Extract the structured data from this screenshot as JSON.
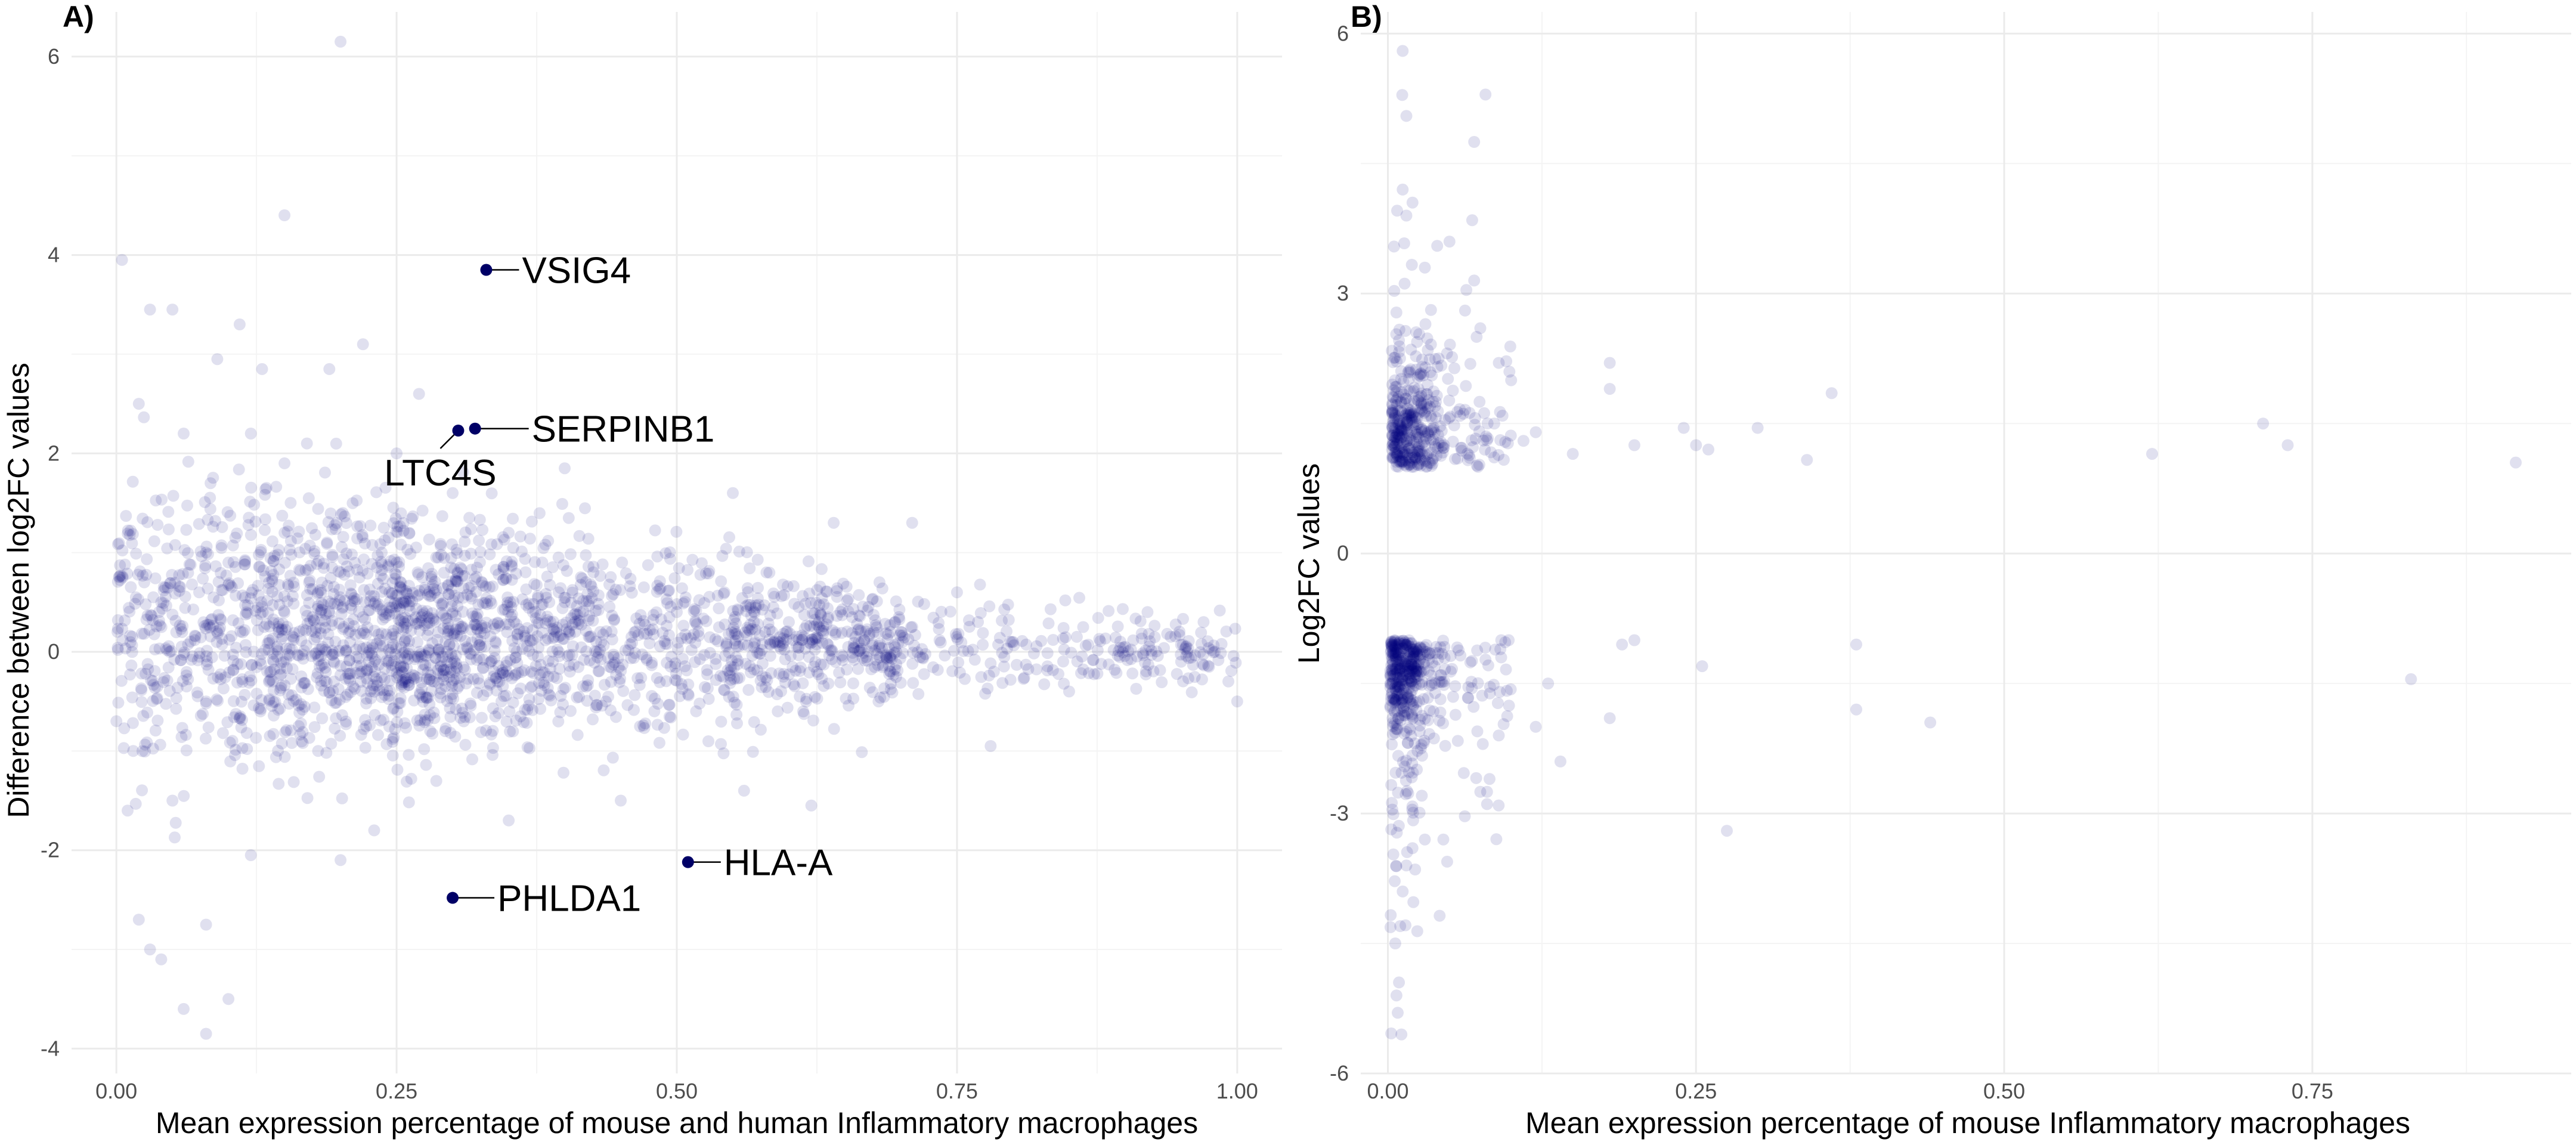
{
  "chart_data": [
    {
      "panel": "A)",
      "type": "scatter",
      "xlabel": "Mean expression percentage of mouse and human Inflammatory macrophages",
      "ylabel": "Difference between log2FC values",
      "xlim": [
        -0.04,
        1.04
      ],
      "ylim": [
        -4.25,
        6.45
      ],
      "x_ticks": [
        0,
        0.25,
        0.5,
        0.75,
        1.0
      ],
      "x_tick_labels": [
        "0.00",
        "0.25",
        "0.50",
        "0.75",
        "1.00"
      ],
      "y_ticks": [
        -4,
        -2,
        0,
        2,
        4,
        6
      ],
      "y_tick_labels": [
        "-4",
        "-2",
        "0",
        "2",
        "4",
        "6"
      ],
      "grid": true,
      "point_color": "#00007f",
      "point_opacity": 0.12,
      "highlight_color": "#000066",
      "approx_point_count": 2600,
      "points": [
        [
          0.005,
          3.95
        ],
        [
          0.2,
          6.15
        ],
        [
          0.15,
          4.4
        ],
        [
          0.03,
          3.45
        ],
        [
          0.05,
          3.45
        ],
        [
          0.11,
          3.3
        ],
        [
          0.13,
          2.85
        ],
        [
          0.17,
          2.1
        ],
        [
          0.27,
          2.6
        ],
        [
          0.19,
          2.85
        ],
        [
          0.09,
          2.95
        ],
        [
          0.02,
          2.5
        ],
        [
          0.06,
          2.2
        ],
        [
          0.22,
          3.1
        ],
        [
          0.15,
          1.9
        ],
        [
          0.25,
          2.0
        ],
        [
          0.4,
          1.85
        ],
        [
          0.55,
          1.6
        ],
        [
          0.64,
          1.3
        ],
        [
          0.71,
          1.3
        ],
        [
          0.02,
          -2.7
        ],
        [
          0.03,
          -3.0
        ],
        [
          0.04,
          -3.1
        ],
        [
          0.06,
          -3.6
        ],
        [
          0.08,
          -3.85
        ],
        [
          0.1,
          -3.5
        ],
        [
          0.08,
          -2.75
        ],
        [
          0.12,
          -2.05
        ],
        [
          0.2,
          -2.1
        ],
        [
          0.23,
          -1.8
        ],
        [
          0.35,
          -1.7
        ],
        [
          0.45,
          -1.5
        ],
        [
          0.56,
          -1.4
        ],
        [
          0.62,
          -1.55
        ],
        [
          0.78,
          -0.95
        ],
        [
          0.01,
          -1.6
        ],
        [
          0.0,
          -0.7
        ],
        [
          0.015,
          -1.0
        ],
        [
          0.05,
          -1.5
        ],
        [
          0.12,
          2.2
        ],
        [
          0.3,
          1.6
        ],
        [
          0.35,
          1.2
        ],
        [
          0.08,
          1.0
        ],
        [
          0.1,
          0.9
        ],
        [
          0.15,
          1.2
        ],
        [
          0.18,
          0.6
        ],
        [
          0.2,
          0.8
        ],
        [
          0.25,
          0.9
        ],
        [
          0.3,
          0.4
        ],
        [
          0.4,
          0.5
        ],
        [
          0.5,
          0.4
        ],
        [
          0.6,
          0.3
        ],
        [
          0.7,
          0.2
        ],
        [
          0.8,
          0.1
        ],
        [
          0.9,
          0.05
        ],
        [
          0.95,
          -0.1
        ],
        [
          0.98,
          0.0
        ],
        [
          1.0,
          -0.5
        ],
        [
          0.97,
          0.3
        ],
        [
          0.92,
          0.4
        ],
        [
          0.85,
          -0.4
        ],
        [
          0.75,
          0.6
        ],
        [
          0.68,
          -0.5
        ],
        [
          0.58,
          0.8
        ],
        [
          0.48,
          -0.6
        ],
        [
          0.38,
          0.9
        ],
        [
          0.28,
          -0.8
        ],
        [
          0.18,
          -1.0
        ],
        [
          0.08,
          -0.5
        ],
        [
          0.04,
          0.5
        ]
      ],
      "highlighted": [
        {
          "gene": "VSIG4",
          "x": 0.33,
          "y": 3.85
        },
        {
          "gene": "SERPINB1",
          "x": 0.32,
          "y": 2.25
        },
        {
          "gene": "LTC4S",
          "x": 0.305,
          "y": 2.23
        },
        {
          "gene": "HLA-A",
          "x": 0.51,
          "y": -2.12
        },
        {
          "gene": "PHLDA1",
          "x": 0.3,
          "y": -2.48
        }
      ]
    },
    {
      "panel": "B)",
      "type": "scatter",
      "xlabel": "Mean expression percentage of mouse Inflammatory macrophages",
      "ylabel": "Log2FC values",
      "xlim": [
        -0.022,
        0.96
      ],
      "ylim": [
        -6.0,
        6.25
      ],
      "x_ticks": [
        0,
        0.25,
        0.5,
        0.75
      ],
      "x_tick_labels": [
        "0.00",
        "0.25",
        "0.50",
        "0.75"
      ],
      "y_ticks": [
        -6,
        -3,
        0,
        3,
        6
      ],
      "y_tick_labels": [
        "-6",
        "-3",
        "0",
        "3",
        "6"
      ],
      "grid": true,
      "point_color": "#00007f",
      "point_opacity": 0.12,
      "approx_point_count": 900,
      "points": [
        [
          0.012,
          5.8
        ],
        [
          0.015,
          5.05
        ],
        [
          0.07,
          4.75
        ],
        [
          0.012,
          4.2
        ],
        [
          0.02,
          4.05
        ],
        [
          0.015,
          3.9
        ],
        [
          0.05,
          3.6
        ],
        [
          0.04,
          3.55
        ],
        [
          0.03,
          3.3
        ],
        [
          0.07,
          3.15
        ],
        [
          0.075,
          2.6
        ],
        [
          0.072,
          2.5
        ],
        [
          0.09,
          2.2
        ],
        [
          0.18,
          2.2
        ],
        [
          0.1,
          2.0
        ],
        [
          0.18,
          1.9
        ],
        [
          0.36,
          1.85
        ],
        [
          0.3,
          1.45
        ],
        [
          0.24,
          1.45
        ],
        [
          0.71,
          1.5
        ],
        [
          0.73,
          1.25
        ],
        [
          0.62,
          1.15
        ],
        [
          0.915,
          1.05
        ],
        [
          0.34,
          1.08
        ],
        [
          0.25,
          1.25
        ],
        [
          0.26,
          1.2
        ],
        [
          0.2,
          1.25
        ],
        [
          0.15,
          1.15
        ],
        [
          0.12,
          1.4
        ],
        [
          0.11,
          1.3
        ],
        [
          0.011,
          -5.55
        ],
        [
          0.008,
          -5.3
        ],
        [
          0.007,
          -5.1
        ],
        [
          0.009,
          -4.95
        ],
        [
          0.006,
          -4.5
        ],
        [
          0.01,
          -4.3
        ],
        [
          0.012,
          -3.9
        ],
        [
          0.015,
          -3.6
        ],
        [
          0.02,
          -3.4
        ],
        [
          0.03,
          -3.3
        ],
        [
          0.045,
          -3.3
        ],
        [
          0.275,
          -3.2
        ],
        [
          0.075,
          -2.75
        ],
        [
          0.14,
          -2.4
        ],
        [
          0.09,
          -2.1
        ],
        [
          0.38,
          -1.05
        ],
        [
          0.38,
          -1.8
        ],
        [
          0.44,
          -1.95
        ],
        [
          0.83,
          -1.45
        ],
        [
          0.2,
          -1.0
        ],
        [
          0.19,
          -1.05
        ],
        [
          0.255,
          -1.3
        ],
        [
          0.18,
          -1.9
        ],
        [
          0.13,
          -1.5
        ],
        [
          0.12,
          -2.0
        ]
      ]
    }
  ]
}
